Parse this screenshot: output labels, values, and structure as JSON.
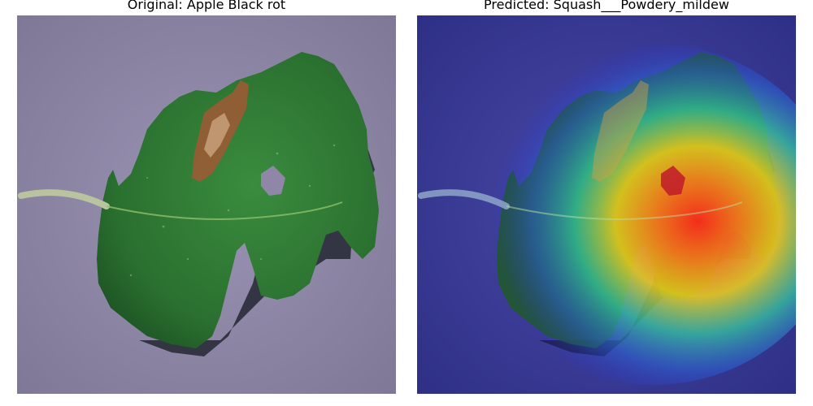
{
  "panels": {
    "original": {
      "title": "Original: Apple Black rot"
    },
    "predicted": {
      "title": "Predicted: Squash___Powdery_mildew"
    }
  },
  "colors": {
    "background_surface": "#8f86a8",
    "leaf_dark": "#1f5a25",
    "leaf_mid": "#2f7d34",
    "lesion_brown": "#9a5b35",
    "heat_low": "#2b2ed6",
    "heat_mid": "#35c8a0",
    "heat_high": "#ff2a1a"
  }
}
